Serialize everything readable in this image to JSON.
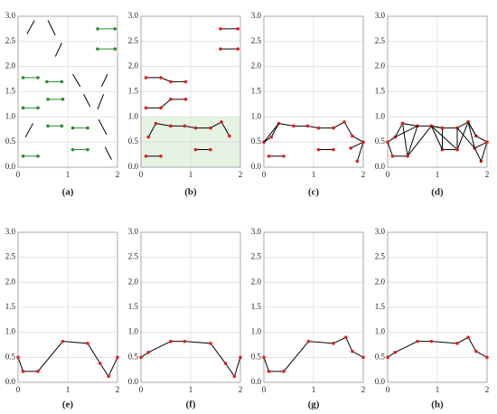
{
  "chart_data": [
    {
      "type": "segments",
      "title": "(a)",
      "xlim": [
        0,
        2
      ],
      "ylim": [
        0,
        3
      ],
      "xticks": [
        0,
        1,
        2
      ],
      "yticks": [
        {
          "value": 0,
          "label": "0.0"
        },
        {
          "value": 0.5,
          "label": "0.5"
        },
        {
          "value": 1,
          "label": "1.0"
        },
        {
          "value": 1.5,
          "label": "1.5"
        },
        {
          "value": 2,
          "label": "2.0"
        },
        {
          "value": 2.5,
          "label": "2.5"
        },
        {
          "value": 3,
          "label": "3.0"
        }
      ],
      "grid": true,
      "lines": [
        {
          "x": [
            0.18,
            0.33
          ],
          "y": [
            2.65,
            2.92
          ],
          "color": "#000000"
        },
        {
          "x": [
            0.6,
            0.75
          ],
          "y": [
            2.92,
            2.62
          ],
          "color": "#000000"
        },
        {
          "x": [
            0.75,
            0.88
          ],
          "y": [
            2.2,
            2.47
          ],
          "color": "#000000"
        },
        {
          "x": [
            1.6,
            1.95
          ],
          "y": [
            2.75,
            2.75
          ],
          "color": "#2e8b2e",
          "marker_color": "#2e8b2e"
        },
        {
          "x": [
            1.6,
            1.95
          ],
          "y": [
            2.35,
            2.35
          ],
          "color": "#2e8b2e",
          "marker_color": "#2e8b2e"
        },
        {
          "x": [
            0.1,
            0.4
          ],
          "y": [
            1.78,
            1.78
          ],
          "color": "#2e8b2e",
          "marker_color": "#2e8b2e"
        },
        {
          "x": [
            0.58,
            0.88
          ],
          "y": [
            1.7,
            1.7
          ],
          "color": "#2e8b2e",
          "marker_color": "#2e8b2e"
        },
        {
          "x": [
            1.1,
            1.25
          ],
          "y": [
            1.85,
            1.6
          ],
          "color": "#000000"
        },
        {
          "x": [
            1.68,
            1.8
          ],
          "y": [
            1.6,
            1.85
          ],
          "color": "#000000"
        },
        {
          "x": [
            0.6,
            0.9
          ],
          "y": [
            1.35,
            1.35
          ],
          "color": "#2e8b2e",
          "marker_color": "#2e8b2e"
        },
        {
          "x": [
            0.1,
            0.4
          ],
          "y": [
            1.18,
            1.18
          ],
          "color": "#2e8b2e",
          "marker_color": "#2e8b2e"
        },
        {
          "x": [
            1.32,
            1.45
          ],
          "y": [
            1.45,
            1.2
          ],
          "color": "#000000"
        },
        {
          "x": [
            1.6,
            1.72
          ],
          "y": [
            1.15,
            1.45
          ],
          "color": "#000000"
        },
        {
          "x": [
            0.15,
            0.3
          ],
          "y": [
            0.6,
            0.87
          ],
          "color": "#000000"
        },
        {
          "x": [
            0.6,
            0.88
          ],
          "y": [
            0.82,
            0.82
          ],
          "color": "#2e8b2e",
          "marker_color": "#2e8b2e"
        },
        {
          "x": [
            1.1,
            1.4
          ],
          "y": [
            0.78,
            0.78
          ],
          "color": "#2e8b2e",
          "marker_color": "#2e8b2e"
        },
        {
          "x": [
            1.62,
            1.78
          ],
          "y": [
            0.95,
            0.65
          ],
          "color": "#000000"
        },
        {
          "x": [
            1.1,
            1.4
          ],
          "y": [
            0.35,
            0.35
          ],
          "color": "#2e8b2e",
          "marker_color": "#2e8b2e"
        },
        {
          "x": [
            0.1,
            0.4
          ],
          "y": [
            0.22,
            0.22
          ],
          "color": "#2e8b2e",
          "marker_color": "#2e8b2e"
        },
        {
          "x": [
            1.75,
            1.88
          ],
          "y": [
            0.4,
            0.15
          ],
          "color": "#000000"
        }
      ]
    },
    {
      "type": "segments",
      "title": "(b)",
      "xlim": [
        0,
        2
      ],
      "ylim": [
        0,
        3
      ],
      "xticks": [
        0,
        1,
        2
      ],
      "yticks": [
        {
          "value": 0,
          "label": "0.0"
        },
        {
          "value": 0.5,
          "label": "0.5"
        },
        {
          "value": 1,
          "label": "1.0"
        },
        {
          "value": 1.5,
          "label": "1.5"
        },
        {
          "value": 2,
          "label": "2.0"
        },
        {
          "value": 2.5,
          "label": "2.5"
        },
        {
          "value": 3,
          "label": "3.0"
        }
      ],
      "grid": true,
      "shaded_region": {
        "x": [
          0,
          2
        ],
        "y": [
          0,
          1
        ],
        "color": "#e6f3e3"
      },
      "lines": [
        {
          "x": [
            0.1,
            0.4,
            0.6,
            0.9
          ],
          "y": [
            1.78,
            1.78,
            1.7,
            1.7
          ],
          "color": "#000000",
          "marker_color": "#e0201b"
        },
        {
          "x": [
            0.1,
            0.4,
            0.6,
            0.9
          ],
          "y": [
            1.18,
            1.18,
            1.35,
            1.35
          ],
          "color": "#000000",
          "marker_color": "#e0201b"
        },
        {
          "x": [
            1.6,
            1.95
          ],
          "y": [
            2.75,
            2.75
          ],
          "color": "#000000",
          "marker_color": "#e0201b"
        },
        {
          "x": [
            1.6,
            1.95
          ],
          "y": [
            2.35,
            2.35
          ],
          "color": "#000000",
          "marker_color": "#e0201b"
        },
        {
          "x": [
            0.15,
            0.3,
            0.6,
            0.88,
            1.1,
            1.4,
            1.62,
            1.78
          ],
          "y": [
            0.6,
            0.87,
            0.82,
            0.82,
            0.78,
            0.78,
            0.9,
            0.62
          ],
          "color": "#000000",
          "marker_color": "#e0201b"
        },
        {
          "x": [
            0.1,
            0.4
          ],
          "y": [
            0.22,
            0.22
          ],
          "color": "#000000",
          "marker_color": "#e0201b"
        },
        {
          "x": [
            1.1,
            1.4
          ],
          "y": [
            0.35,
            0.35
          ],
          "color": "#000000",
          "marker_color": "#e0201b"
        }
      ]
    },
    {
      "type": "segments",
      "title": "(c)",
      "xlim": [
        0,
        2
      ],
      "ylim": [
        0,
        3
      ],
      "xticks": [
        0,
        1,
        2
      ],
      "yticks": [
        {
          "value": 0,
          "label": "0.0"
        },
        {
          "value": 0.5,
          "label": "0.5"
        },
        {
          "value": 1,
          "label": "1.0"
        },
        {
          "value": 1.5,
          "label": "1.5"
        },
        {
          "value": 2,
          "label": "2.0"
        },
        {
          "value": 2.5,
          "label": "2.5"
        },
        {
          "value": 3,
          "label": "3.0"
        }
      ],
      "grid": true,
      "lines": [
        {
          "x": [
            0,
            0.15,
            0.3,
            0.6,
            0.88,
            1.1,
            1.4,
            1.62,
            1.78,
            2,
            1.88
          ],
          "y": [
            0.5,
            0.6,
            0.87,
            0.82,
            0.82,
            0.78,
            0.78,
            0.9,
            0.62,
            0.5,
            0.12
          ],
          "color": "#000000",
          "marker_color": "#e0201b"
        },
        {
          "x": [
            0,
            0.3
          ],
          "y": [
            0.5,
            0.87
          ],
          "color": "#000000"
        },
        {
          "x": [
            1.75,
            2
          ],
          "y": [
            0.38,
            0.5
          ],
          "color": "#000000",
          "marker_color": "#e0201b"
        },
        {
          "x": [
            0.1,
            0.4
          ],
          "y": [
            0.22,
            0.22
          ],
          "color": "#000000",
          "marker_color": "#e0201b"
        },
        {
          "x": [
            1.1,
            1.4
          ],
          "y": [
            0.35,
            0.35
          ],
          "color": "#000000",
          "marker_color": "#e0201b"
        }
      ]
    },
    {
      "type": "segments",
      "title": "(d)",
      "xlim": [
        0,
        2
      ],
      "ylim": [
        0,
        3
      ],
      "xticks": [
        0,
        1,
        2
      ],
      "yticks": [
        {
          "value": 0,
          "label": "0.0"
        },
        {
          "value": 0.5,
          "label": "0.5"
        },
        {
          "value": 1,
          "label": "1.0"
        },
        {
          "value": 1.5,
          "label": "1.5"
        },
        {
          "value": 2,
          "label": "2.0"
        },
        {
          "value": 2.5,
          "label": "2.5"
        },
        {
          "value": 3,
          "label": "3.0"
        }
      ],
      "grid": true,
      "lines": [
        {
          "x": [
            0,
            0.15,
            0.3,
            0.6,
            0.88,
            1.1,
            1.4,
            1.62,
            1.78,
            2,
            1.88
          ],
          "y": [
            0.5,
            0.6,
            0.87,
            0.82,
            0.82,
            0.78,
            0.78,
            0.9,
            0.62,
            0.5,
            0.12
          ],
          "color": "#000000",
          "marker_color": "#e0201b"
        },
        {
          "x": [
            0,
            0.1,
            0.4,
            0.3
          ],
          "y": [
            0.5,
            0.22,
            0.22,
            0.87
          ],
          "color": "#000000",
          "marker_color": "#e0201b"
        },
        {
          "x": [
            0.4,
            0.6,
            0.15
          ],
          "y": [
            0.22,
            0.82,
            0.6
          ],
          "color": "#000000"
        },
        {
          "x": [
            0.4,
            0.88,
            1.1,
            1.1,
            1.4,
            1.4
          ],
          "y": [
            0.22,
            0.82,
            0.78,
            0.35,
            0.35,
            0.78
          ],
          "color": "#000000",
          "marker_color": "#e0201b"
        },
        {
          "x": [
            0.88,
            1.4,
            1.62,
            1.75,
            2
          ],
          "y": [
            0.82,
            0.35,
            0.9,
            0.38,
            0.5
          ],
          "color": "#000000",
          "marker_color": "#e0201b"
        },
        {
          "x": [
            0.88,
            1.1
          ],
          "y": [
            0.82,
            0.35
          ],
          "color": "#000000"
        },
        {
          "x": [
            1.4,
            1.75,
            1.88
          ],
          "y": [
            0.78,
            0.38,
            0.12
          ],
          "color": "#000000"
        },
        {
          "x": [
            1.62,
            1.78
          ],
          "y": [
            0.9,
            0.62
          ],
          "color": "#000000"
        }
      ]
    },
    {
      "type": "segments",
      "title": "(e)",
      "xlim": [
        0,
        2
      ],
      "ylim": [
        0,
        3
      ],
      "xticks": [
        0,
        1,
        2
      ],
      "yticks": [
        {
          "value": 0,
          "label": "0.0"
        },
        {
          "value": 0.5,
          "label": "0.5"
        },
        {
          "value": 1,
          "label": "1.0"
        },
        {
          "value": 1.5,
          "label": "1.5"
        },
        {
          "value": 2,
          "label": "2.0"
        },
        {
          "value": 2.5,
          "label": "2.5"
        },
        {
          "value": 3,
          "label": "3.0"
        }
      ],
      "grid": true,
      "lines": [
        {
          "x": [
            0,
            0.1,
            0.4,
            0.9,
            1.4,
            1.65,
            1.82,
            2
          ],
          "y": [
            0.5,
            0.22,
            0.22,
            0.82,
            0.78,
            0.38,
            0.12,
            0.5
          ],
          "color": "#000000",
          "marker_color": "#e0201b"
        }
      ]
    },
    {
      "type": "segments",
      "title": "(f)",
      "xlim": [
        0,
        2
      ],
      "ylim": [
        0,
        3
      ],
      "xticks": [
        0,
        1,
        2
      ],
      "yticks": [
        {
          "value": 0,
          "label": "0.0"
        },
        {
          "value": 0.5,
          "label": "0.5"
        },
        {
          "value": 1,
          "label": "1.0"
        },
        {
          "value": 1.5,
          "label": "1.5"
        },
        {
          "value": 2,
          "label": "2.0"
        },
        {
          "value": 2.5,
          "label": "2.5"
        },
        {
          "value": 3,
          "label": "3.0"
        }
      ],
      "grid": true,
      "lines": [
        {
          "x": [
            0,
            0.15,
            0.6,
            0.88,
            1.4,
            1.7,
            1.88,
            2
          ],
          "y": [
            0.5,
            0.6,
            0.82,
            0.82,
            0.78,
            0.38,
            0.12,
            0.5
          ],
          "color": "#000000",
          "marker_color": "#e0201b"
        }
      ]
    },
    {
      "type": "segments",
      "title": "(g)",
      "xlim": [
        0,
        2
      ],
      "ylim": [
        0,
        3
      ],
      "xticks": [
        0,
        1,
        2
      ],
      "yticks": [
        {
          "value": 0,
          "label": "0.0"
        },
        {
          "value": 0.5,
          "label": "0.5"
        },
        {
          "value": 1,
          "label": "1.0"
        },
        {
          "value": 1.5,
          "label": "1.5"
        },
        {
          "value": 2,
          "label": "2.0"
        },
        {
          "value": 2.5,
          "label": "2.5"
        },
        {
          "value": 3,
          "label": "3.0"
        }
      ],
      "grid": true,
      "lines": [
        {
          "x": [
            0,
            0.1,
            0.4,
            0.9,
            1.4,
            1.65,
            1.78,
            2
          ],
          "y": [
            0.5,
            0.22,
            0.22,
            0.82,
            0.78,
            0.9,
            0.62,
            0.5
          ],
          "color": "#000000",
          "marker_color": "#e0201b"
        }
      ]
    },
    {
      "type": "segments",
      "title": "(h)",
      "xlim": [
        0,
        2
      ],
      "ylim": [
        0,
        3
      ],
      "xticks": [
        0,
        1,
        2
      ],
      "yticks": [
        {
          "value": 0,
          "label": "0.0"
        },
        {
          "value": 0.5,
          "label": "0.5"
        },
        {
          "value": 1,
          "label": "1.0"
        },
        {
          "value": 1.5,
          "label": "1.5"
        },
        {
          "value": 2,
          "label": "2.0"
        },
        {
          "value": 2.5,
          "label": "2.5"
        },
        {
          "value": 3,
          "label": "3.0"
        }
      ],
      "grid": true,
      "lines": [
        {
          "x": [
            0,
            0.15,
            0.6,
            0.88,
            1.4,
            1.62,
            1.78,
            2
          ],
          "y": [
            0.5,
            0.6,
            0.82,
            0.82,
            0.78,
            0.9,
            0.62,
            0.5
          ],
          "color": "#000000",
          "marker_color": "#e0201b"
        }
      ]
    }
  ]
}
